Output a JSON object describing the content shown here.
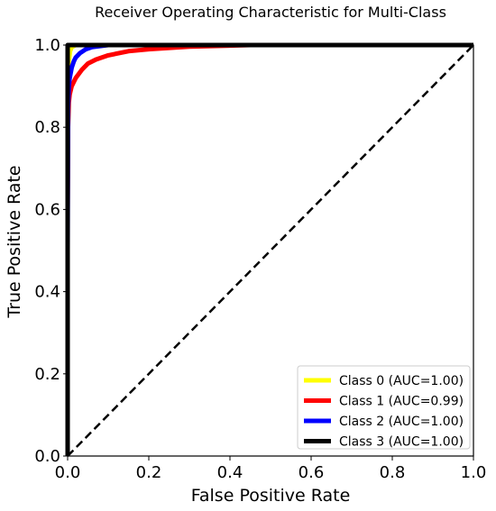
{
  "chart_data": {
    "type": "line",
    "title": "Receiver Operating Characteristic for Multi-Class",
    "xlabel": "False Positive Rate",
    "ylabel": "True Positive Rate",
    "xlim": [
      0.0,
      1.0
    ],
    "ylim": [
      0.0,
      1.0
    ],
    "xticks": [
      "0.0",
      "0.2",
      "0.4",
      "0.6",
      "0.8",
      "1.0"
    ],
    "yticks": [
      "0.0",
      "0.2",
      "0.4",
      "0.6",
      "0.8",
      "1.0"
    ],
    "grid": false,
    "legend_position": "lower-right",
    "series": [
      {
        "name": "Class 0 (AUC=1.00)",
        "color": "#ffff00",
        "x": [
          0,
          0,
          0.001,
          0.003,
          0.006,
          0.01,
          0.02,
          0.05,
          1.0
        ],
        "y": [
          0,
          0.78,
          0.9,
          0.96,
          0.985,
          0.995,
          1.0,
          1.0,
          1.0
        ]
      },
      {
        "name": "Class 1 (AUC=0.99)",
        "color": "#ff0000",
        "x": [
          0,
          0,
          0.001,
          0.003,
          0.005,
          0.01,
          0.02,
          0.035,
          0.05,
          0.07,
          0.1,
          0.15,
          0.2,
          0.3,
          0.45,
          1.0
        ],
        "y": [
          0,
          0.6,
          0.8,
          0.86,
          0.88,
          0.9,
          0.92,
          0.94,
          0.955,
          0.965,
          0.975,
          0.985,
          0.99,
          0.996,
          1.0,
          1.0
        ]
      },
      {
        "name": "Class 2 (AUC=1.00)",
        "color": "#0000ff",
        "x": [
          0,
          0,
          0.001,
          0.003,
          0.005,
          0.01,
          0.015,
          0.02,
          0.03,
          0.045,
          0.06,
          0.1,
          1.0
        ],
        "y": [
          0,
          0.5,
          0.85,
          0.9,
          0.92,
          0.945,
          0.96,
          0.97,
          0.98,
          0.99,
          0.995,
          1.0,
          1.0
        ]
      },
      {
        "name": "Class 3 (AUC=1.00)",
        "color": "#000000",
        "x": [
          0,
          0,
          1.0
        ],
        "y": [
          0,
          1.0,
          1.0
        ]
      }
    ],
    "reference_line": {
      "style": "dashed",
      "color": "#000000",
      "x": [
        0,
        1
      ],
      "y": [
        0,
        1
      ]
    }
  }
}
